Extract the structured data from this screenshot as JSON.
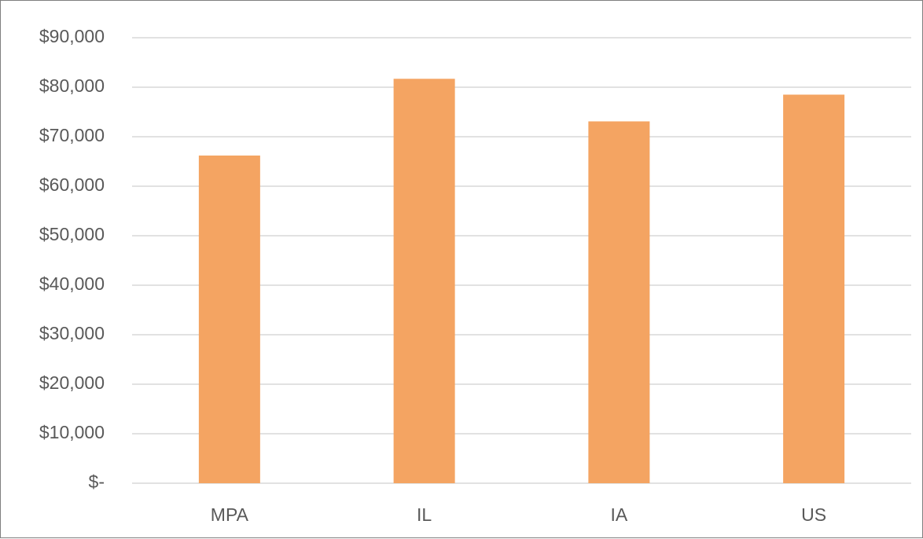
{
  "chart_data": {
    "type": "bar",
    "categories": [
      "MPA",
      "IL",
      "IA",
      "US"
    ],
    "series": [
      {
        "values": [
          66200,
          81700,
          73100,
          78500
        ]
      }
    ],
    "ylim": [
      0,
      90000
    ],
    "yticks": [
      0,
      10000,
      20000,
      30000,
      40000,
      50000,
      60000,
      70000,
      80000,
      90000
    ],
    "ytick_labels": [
      "$-",
      "$10,000",
      "$20,000",
      "$30,000",
      "$40,000",
      "$50,000",
      "$60,000",
      "$70,000",
      "$80,000",
      "$90,000"
    ],
    "grid": true,
    "legend": "none",
    "title": "",
    "xlabel": "",
    "ylabel": "",
    "colors": {
      "bar": "#f4a462",
      "grid": "#d9d9d9",
      "text": "#595959",
      "border": "#7f7f7f"
    }
  }
}
